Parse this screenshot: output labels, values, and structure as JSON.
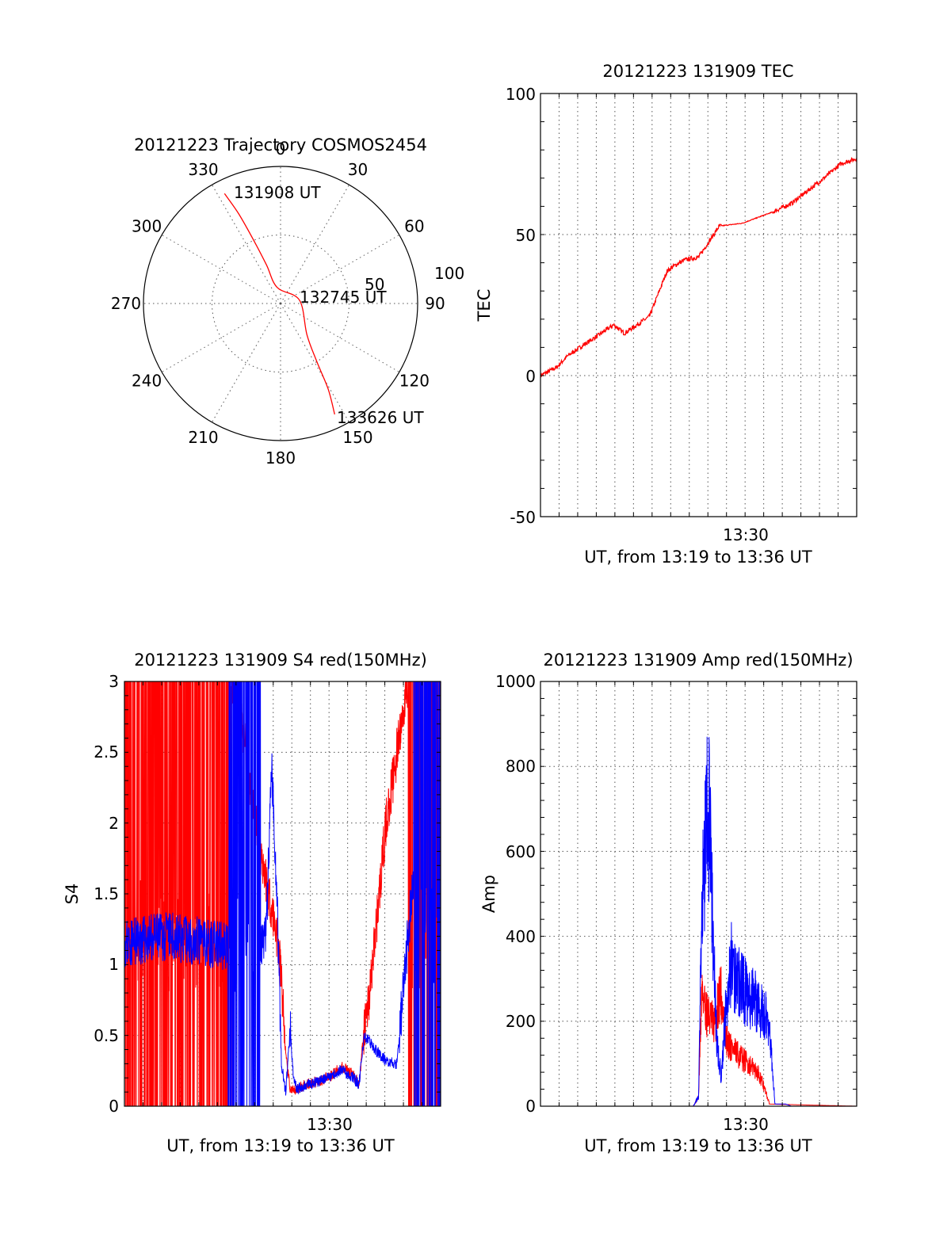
{
  "colors": {
    "red": "#ff0000",
    "blue": "#0000ff"
  },
  "chart_data": [
    {
      "type": "polar",
      "title": "20121223 Trajectory COSMOS2454",
      "azimuth_labels": [
        "0",
        "30",
        "60",
        "90",
        "120",
        "150",
        "180",
        "210",
        "240",
        "270",
        "300",
        "330"
      ],
      "azimuths": [
        0,
        30,
        60,
        90,
        120,
        150,
        180,
        210,
        240,
        270,
        300,
        330
      ],
      "radial_ticks": [
        "50",
        "100"
      ],
      "radial_ticks_values": [
        50,
        100
      ],
      "rmax": 100,
      "grid": true,
      "trajectory": [
        {
          "az": 333,
          "r": 90
        },
        {
          "az": 335,
          "r": 72
        },
        {
          "az": 337,
          "r": 50
        },
        {
          "az": 340,
          "r": 30
        },
        {
          "az": 348,
          "r": 12
        },
        {
          "az": 80,
          "r": 14
        },
        {
          "az": 140,
          "r": 30
        },
        {
          "az": 148,
          "r": 50
        },
        {
          "az": 151,
          "r": 72
        },
        {
          "az": 154,
          "r": 90
        }
      ],
      "annotations": [
        {
          "text": "131908 UT"
        },
        {
          "text": "132745 UT"
        },
        {
          "text": "133626 UT"
        }
      ]
    },
    {
      "type": "line",
      "title": "20121223 131909 TEC",
      "xlabel": "UT, from 13:19 to 13:36 UT",
      "ylabel": "TEC",
      "xlim": [
        13.32,
        13.61
      ],
      "ylim": [
        -50,
        100
      ],
      "yticks": [
        100,
        50,
        0,
        -50
      ],
      "ytick_labels": [
        "100",
        "50",
        "0",
        "-50"
      ],
      "xticks": [
        13.5
      ],
      "xtick_labels": [
        "13:30"
      ],
      "grid": true,
      "series": [
        {
          "color": "red",
          "x": [
            13.32,
            13.335,
            13.345,
            13.36,
            13.372,
            13.387,
            13.397,
            13.42,
            13.436,
            13.443,
            13.452,
            13.465,
            13.484,
            13.505,
            13.533,
            13.55,
            13.58,
            13.595,
            13.61
          ],
          "y": [
            0,
            3,
            7,
            11,
            14,
            18,
            15,
            21,
            37,
            39,
            41,
            42,
            53,
            54,
            58,
            61,
            70,
            75,
            77
          ]
        }
      ]
    },
    {
      "type": "line",
      "title": "20121223 131909 S4 red(150MHz)",
      "xlabel": "UT, from 13:19 to 13:36 UT",
      "ylabel": "S4",
      "xlim": [
        13.32,
        13.61
      ],
      "ylim": [
        0,
        3
      ],
      "yticks": [
        3,
        2.5,
        2,
        1.5,
        1,
        0.5,
        0
      ],
      "ytick_labels": [
        "3",
        "2.5",
        "2",
        "1.5",
        "1",
        "0.5",
        "0"
      ],
      "xticks": [
        13.5
      ],
      "xtick_labels": [
        "13:30"
      ],
      "grid": true,
      "series": [
        {
          "color": "red",
          "x": [
            13.32,
            13.38,
            13.42,
            13.425,
            13.43,
            13.435,
            13.44,
            13.45,
            13.46,
            13.464,
            13.468,
            13.472,
            13.475,
            13.478,
            13.485,
            13.5,
            13.51,
            13.52,
            13.53,
            13.535,
            13.54,
            13.545,
            13.55,
            13.555,
            13.56,
            13.57,
            13.58,
            13.61
          ],
          "y": [
            3.0,
            3.0,
            3.0,
            2.8,
            2.6,
            2.3,
            2.0,
            1.6,
            1.2,
            0.9,
            0.35,
            0.12,
            0.1,
            0.12,
            0.15,
            0.18,
            0.22,
            0.28,
            0.22,
            0.15,
            0.55,
            0.8,
            1.2,
            1.6,
            2.0,
            2.5,
            3.0,
            3.0
          ]
        },
        {
          "color": "blue",
          "x": [
            13.32,
            13.36,
            13.4,
            13.42,
            13.43,
            13.44,
            13.445,
            13.45,
            13.455,
            13.46,
            13.464,
            13.468,
            13.472,
            13.475,
            13.478,
            13.485,
            13.5,
            13.51,
            13.52,
            13.53,
            13.535,
            13.54,
            13.55,
            13.56,
            13.57,
            13.58,
            13.6,
            13.61
          ],
          "y": [
            1.15,
            1.2,
            1.15,
            1.1,
            1.1,
            1.1,
            1.1,
            1.2,
            2.4,
            1.5,
            0.3,
            0.1,
            0.55,
            0.2,
            0.12,
            0.14,
            0.18,
            0.22,
            0.26,
            0.2,
            0.15,
            0.5,
            0.4,
            0.32,
            0.3,
            1.2,
            2.8,
            3.0
          ]
        }
      ]
    },
    {
      "type": "line",
      "title": "20121223 131909 Amp red(150MHz)",
      "xlabel": "UT, from 13:19 to 13:36 UT",
      "ylabel": "Amp",
      "xlim": [
        13.32,
        13.61
      ],
      "ylim": [
        0,
        1000
      ],
      "yticks": [
        1000,
        800,
        600,
        400,
        200,
        0
      ],
      "ytick_labels": [
        "1000",
        "800",
        "600",
        "400",
        "200",
        "0"
      ],
      "xticks": [
        13.5
      ],
      "xtick_labels": [
        "13:30"
      ],
      "grid": true,
      "series": [
        {
          "color": "red",
          "x": [
            13.32,
            13.46,
            13.465,
            13.468,
            13.472,
            13.476,
            13.48,
            13.485,
            13.49,
            13.5,
            13.51,
            13.52,
            13.525,
            13.53,
            13.61
          ],
          "y": [
            0,
            0,
            20,
            250,
            200,
            180,
            170,
            250,
            140,
            110,
            90,
            70,
            40,
            5,
            0
          ]
        },
        {
          "color": "blue",
          "x": [
            13.32,
            13.46,
            13.465,
            13.468,
            13.472,
            13.475,
            13.478,
            13.482,
            13.486,
            13.49,
            13.495,
            13.5,
            13.51,
            13.52,
            13.53,
            13.535,
            13.545,
            13.55,
            13.61
          ],
          "y": [
            0,
            0,
            20,
            400,
            580,
            600,
            350,
            120,
            60,
            200,
            300,
            260,
            230,
            210,
            170,
            5,
            5,
            0,
            0
          ]
        }
      ]
    }
  ]
}
